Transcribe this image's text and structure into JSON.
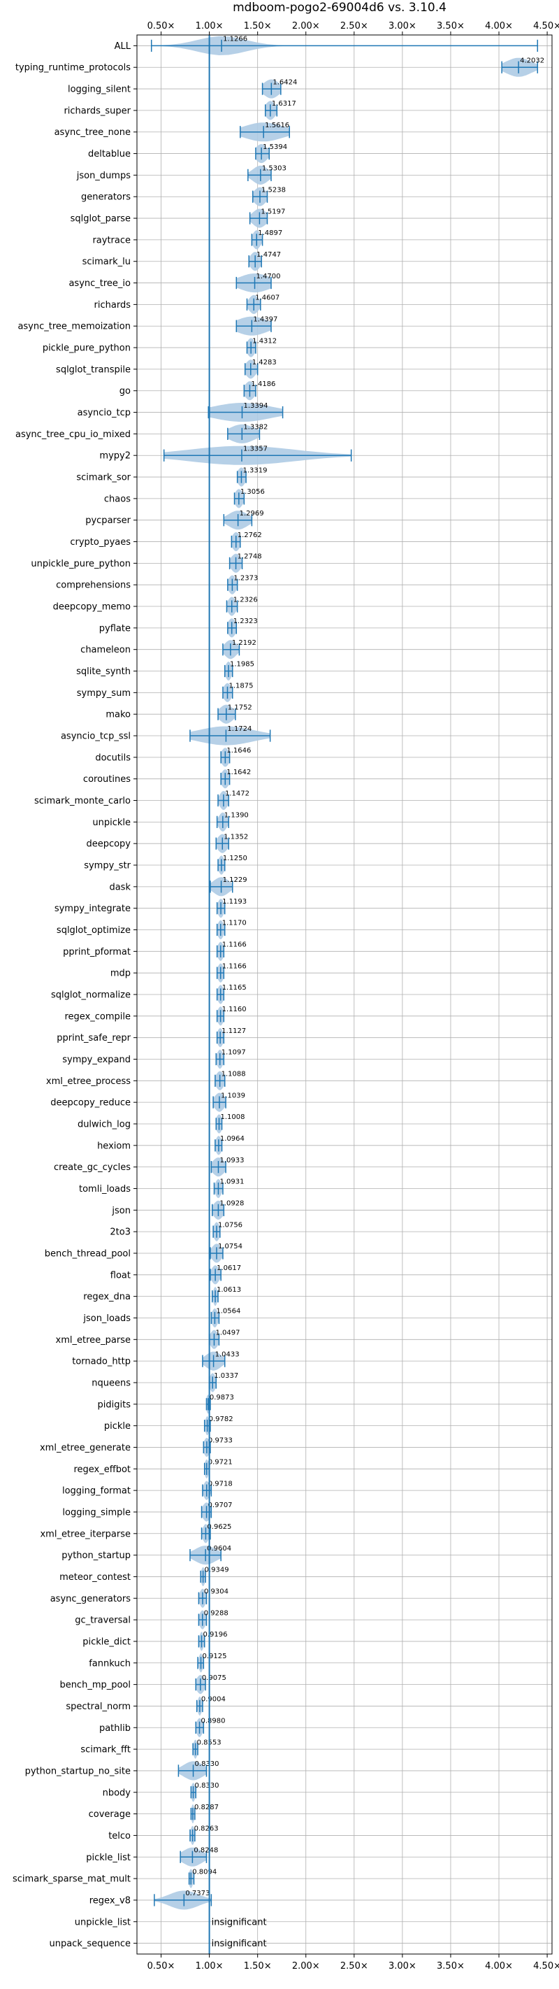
{
  "chart_data": {
    "type": "violin",
    "title": "mdboom-pogo2-69004d6 vs. 3.10.4",
    "xlabel": "",
    "ylabel": "",
    "xlim": [
      0.25,
      4.55
    ],
    "x_ticks": [
      0.5,
      1.0,
      1.5,
      2.0,
      2.5,
      3.0,
      3.5,
      4.0,
      4.5
    ],
    "x_tick_labels": [
      "0.50×",
      "1.00×",
      "1.50×",
      "2.00×",
      "2.50×",
      "3.00×",
      "3.50×",
      "4.00×",
      "4.50×"
    ],
    "reference_line": 1.0,
    "grid": true,
    "colors": {
      "violin": "#aecbe4",
      "line": "#1f77b4",
      "grid": "#b0b0b0"
    },
    "insignificant_label": "insignificant",
    "benchmarks": [
      {
        "name": "ALL",
        "value": 1.1266,
        "label": "1.1266",
        "min": 0.4,
        "max": 4.4,
        "spread": 0.25
      },
      {
        "name": "typing_runtime_protocols",
        "value": 4.2032,
        "label": "4.2032",
        "min": 4.03,
        "max": 4.4,
        "spread": 0.13
      },
      {
        "name": "logging_silent",
        "value": 1.6424,
        "label": "1.6424",
        "min": 1.55,
        "max": 1.74,
        "spread": 0.08
      },
      {
        "name": "richards_super",
        "value": 1.6317,
        "label": "1.6317",
        "min": 1.58,
        "max": 1.7,
        "spread": 0.05
      },
      {
        "name": "async_tree_none",
        "value": 1.5616,
        "label": "1.5616",
        "min": 1.32,
        "max": 1.83,
        "spread": 0.2
      },
      {
        "name": "deltablue",
        "value": 1.5394,
        "label": "1.5394",
        "min": 1.48,
        "max": 1.62,
        "spread": 0.06
      },
      {
        "name": "json_dumps",
        "value": 1.5303,
        "label": "1.5303",
        "min": 1.4,
        "max": 1.64,
        "spread": 0.08
      },
      {
        "name": "generators",
        "value": 1.5238,
        "label": "1.5238",
        "min": 1.45,
        "max": 1.6,
        "spread": 0.06
      },
      {
        "name": "sqlglot_parse",
        "value": 1.5197,
        "label": "1.5197",
        "min": 1.42,
        "max": 1.6,
        "spread": 0.07
      },
      {
        "name": "raytrace",
        "value": 1.4897,
        "label": "1.4897",
        "min": 1.44,
        "max": 1.55,
        "spread": 0.04
      },
      {
        "name": "scimark_lu",
        "value": 1.4747,
        "label": "1.4747",
        "min": 1.41,
        "max": 1.54,
        "spread": 0.05
      },
      {
        "name": "async_tree_io",
        "value": 1.47,
        "label": "1.4700",
        "min": 1.28,
        "max": 1.64,
        "spread": 0.16
      },
      {
        "name": "richards",
        "value": 1.4607,
        "label": "1.4607",
        "min": 1.39,
        "max": 1.53,
        "spread": 0.05
      },
      {
        "name": "async_tree_memoization",
        "value": 1.4397,
        "label": "1.4397",
        "min": 1.28,
        "max": 1.64,
        "spread": 0.16
      },
      {
        "name": "pickle_pure_python",
        "value": 1.4312,
        "label": "1.4312",
        "min": 1.39,
        "max": 1.48,
        "spread": 0.04
      },
      {
        "name": "sqlglot_transpile",
        "value": 1.4283,
        "label": "1.4283",
        "min": 1.37,
        "max": 1.5,
        "spread": 0.05
      },
      {
        "name": "go",
        "value": 1.4186,
        "label": "1.4186",
        "min": 1.36,
        "max": 1.48,
        "spread": 0.05
      },
      {
        "name": "asyncio_tcp",
        "value": 1.3394,
        "label": "1.3394",
        "min": 0.99,
        "max": 1.76,
        "spread": 0.3
      },
      {
        "name": "async_tree_cpu_io_mixed",
        "value": 1.3382,
        "label": "1.3382",
        "min": 1.19,
        "max": 1.52,
        "spread": 0.13
      },
      {
        "name": "mypy2",
        "value": 1.3357,
        "label": "1.3357",
        "min": 0.53,
        "max": 2.47,
        "spread": 0.55
      },
      {
        "name": "scimark_sor",
        "value": 1.3319,
        "label": "1.3319",
        "min": 1.29,
        "max": 1.38,
        "spread": 0.04
      },
      {
        "name": "chaos",
        "value": 1.3056,
        "label": "1.3056",
        "min": 1.26,
        "max": 1.36,
        "spread": 0.04
      },
      {
        "name": "pycparser",
        "value": 1.2969,
        "label": "1.2969",
        "min": 1.15,
        "max": 1.44,
        "spread": 0.1
      },
      {
        "name": "crypto_pyaes",
        "value": 1.2762,
        "label": "1.2762",
        "min": 1.23,
        "max": 1.32,
        "spread": 0.04
      },
      {
        "name": "unpickle_pure_python",
        "value": 1.2748,
        "label": "1.2748",
        "min": 1.21,
        "max": 1.34,
        "spread": 0.05
      },
      {
        "name": "comprehensions",
        "value": 1.2373,
        "label": "1.2373",
        "min": 1.19,
        "max": 1.29,
        "spread": 0.04
      },
      {
        "name": "deepcopy_memo",
        "value": 1.2326,
        "label": "1.2326",
        "min": 1.18,
        "max": 1.29,
        "spread": 0.04
      },
      {
        "name": "pyflate",
        "value": 1.2323,
        "label": "1.2323",
        "min": 1.19,
        "max": 1.28,
        "spread": 0.04
      },
      {
        "name": "chameleon",
        "value": 1.2192,
        "label": "1.2192",
        "min": 1.14,
        "max": 1.31,
        "spread": 0.06
      },
      {
        "name": "sqlite_synth",
        "value": 1.1985,
        "label": "1.1985",
        "min": 1.16,
        "max": 1.24,
        "spread": 0.03
      },
      {
        "name": "sympy_sum",
        "value": 1.1875,
        "label": "1.1875",
        "min": 1.14,
        "max": 1.24,
        "spread": 0.04
      },
      {
        "name": "mako",
        "value": 1.1752,
        "label": "1.1752",
        "min": 1.09,
        "max": 1.27,
        "spread": 0.07
      },
      {
        "name": "asyncio_tcp_ssl",
        "value": 1.1724,
        "label": "1.1724",
        "min": 0.8,
        "max": 1.63,
        "spread": 0.28
      },
      {
        "name": "docutils",
        "value": 1.1646,
        "label": "1.1646",
        "min": 1.12,
        "max": 1.21,
        "spread": 0.04
      },
      {
        "name": "coroutines",
        "value": 1.1642,
        "label": "1.1642",
        "min": 1.12,
        "max": 1.21,
        "spread": 0.04
      },
      {
        "name": "scimark_monte_carlo",
        "value": 1.1472,
        "label": "1.1472",
        "min": 1.09,
        "max": 1.2,
        "spread": 0.04
      },
      {
        "name": "unpickle",
        "value": 1.139,
        "label": "1.1390",
        "min": 1.08,
        "max": 1.2,
        "spread": 0.04
      },
      {
        "name": "deepcopy",
        "value": 1.1352,
        "label": "1.1352",
        "min": 1.07,
        "max": 1.2,
        "spread": 0.05
      },
      {
        "name": "sympy_str",
        "value": 1.125,
        "label": "1.1250",
        "min": 1.09,
        "max": 1.16,
        "spread": 0.03
      },
      {
        "name": "dask",
        "value": 1.1229,
        "label": "1.1229",
        "min": 1.01,
        "max": 1.24,
        "spread": 0.08
      },
      {
        "name": "sympy_integrate",
        "value": 1.1193,
        "label": "1.1193",
        "min": 1.08,
        "max": 1.16,
        "spread": 0.03
      },
      {
        "name": "sqlglot_optimize",
        "value": 1.117,
        "label": "1.1170",
        "min": 1.08,
        "max": 1.16,
        "spread": 0.03
      },
      {
        "name": "pprint_pformat",
        "value": 1.1166,
        "label": "1.1166",
        "min": 1.08,
        "max": 1.15,
        "spread": 0.03
      },
      {
        "name": "mdp",
        "value": 1.1166,
        "label": "1.1166",
        "min": 1.08,
        "max": 1.15,
        "spread": 0.03
      },
      {
        "name": "sqlglot_normalize",
        "value": 1.1165,
        "label": "1.1165",
        "min": 1.08,
        "max": 1.15,
        "spread": 0.03
      },
      {
        "name": "regex_compile",
        "value": 1.116,
        "label": "1.1160",
        "min": 1.08,
        "max": 1.15,
        "spread": 0.03
      },
      {
        "name": "pprint_safe_repr",
        "value": 1.1127,
        "label": "1.1127",
        "min": 1.08,
        "max": 1.15,
        "spread": 0.03
      },
      {
        "name": "sympy_expand",
        "value": 1.1097,
        "label": "1.1097",
        "min": 1.07,
        "max": 1.15,
        "spread": 0.03
      },
      {
        "name": "xml_etree_process",
        "value": 1.1088,
        "label": "1.1088",
        "min": 1.06,
        "max": 1.16,
        "spread": 0.04
      },
      {
        "name": "deepcopy_reduce",
        "value": 1.1039,
        "label": "1.1039",
        "min": 1.04,
        "max": 1.17,
        "spread": 0.05
      },
      {
        "name": "dulwich_log",
        "value": 1.1008,
        "label": "1.1008",
        "min": 1.07,
        "max": 1.13,
        "spread": 0.03
      },
      {
        "name": "hexiom",
        "value": 1.0964,
        "label": "1.0964",
        "min": 1.06,
        "max": 1.13,
        "spread": 0.03
      },
      {
        "name": "create_gc_cycles",
        "value": 1.0933,
        "label": "1.0933",
        "min": 1.02,
        "max": 1.17,
        "spread": 0.06
      },
      {
        "name": "tomli_loads",
        "value": 1.0931,
        "label": "1.0931",
        "min": 1.05,
        "max": 1.14,
        "spread": 0.03
      },
      {
        "name": "json",
        "value": 1.0928,
        "label": "1.0928",
        "min": 1.03,
        "max": 1.15,
        "spread": 0.05
      },
      {
        "name": "2to3",
        "value": 1.0756,
        "label": "1.0756",
        "min": 1.04,
        "max": 1.11,
        "spread": 0.03
      },
      {
        "name": "bench_thread_pool",
        "value": 1.0754,
        "label": "1.0754",
        "min": 1.01,
        "max": 1.14,
        "spread": 0.05
      },
      {
        "name": "float",
        "value": 1.0617,
        "label": "1.0617",
        "min": 1.01,
        "max": 1.12,
        "spread": 0.04
      },
      {
        "name": "regex_dna",
        "value": 1.0613,
        "label": "1.0613",
        "min": 1.03,
        "max": 1.09,
        "spread": 0.02
      },
      {
        "name": "json_loads",
        "value": 1.0564,
        "label": "1.0564",
        "min": 1.02,
        "max": 1.1,
        "spread": 0.03
      },
      {
        "name": "xml_etree_parse",
        "value": 1.0497,
        "label": "1.0497",
        "min": 1.0,
        "max": 1.1,
        "spread": 0.04
      },
      {
        "name": "tornado_http",
        "value": 1.0433,
        "label": "1.0433",
        "min": 0.93,
        "max": 1.16,
        "spread": 0.08
      },
      {
        "name": "nqueens",
        "value": 1.0337,
        "label": "1.0337",
        "min": 1.0,
        "max": 1.07,
        "spread": 0.03
      },
      {
        "name": "pidigits",
        "value": 0.9873,
        "label": "0.9873",
        "min": 0.97,
        "max": 1.01,
        "spread": 0.02
      },
      {
        "name": "pickle",
        "value": 0.9782,
        "label": "0.9782",
        "min": 0.95,
        "max": 1.01,
        "spread": 0.02
      },
      {
        "name": "xml_etree_generate",
        "value": 0.9733,
        "label": "0.9733",
        "min": 0.94,
        "max": 1.01,
        "spread": 0.03
      },
      {
        "name": "regex_effbot",
        "value": 0.9721,
        "label": "0.9721",
        "min": 0.95,
        "max": 1.0,
        "spread": 0.02
      },
      {
        "name": "logging_format",
        "value": 0.9718,
        "label": "0.9718",
        "min": 0.93,
        "max": 1.02,
        "spread": 0.03
      },
      {
        "name": "logging_simple",
        "value": 0.9707,
        "label": "0.9707",
        "min": 0.92,
        "max": 1.02,
        "spread": 0.04
      },
      {
        "name": "xml_etree_iterparse",
        "value": 0.9625,
        "label": "0.9625",
        "min": 0.92,
        "max": 1.01,
        "spread": 0.03
      },
      {
        "name": "python_startup",
        "value": 0.9604,
        "label": "0.9604",
        "min": 0.8,
        "max": 1.12,
        "spread": 0.11
      },
      {
        "name": "meteor_contest",
        "value": 0.9349,
        "label": "0.9349",
        "min": 0.91,
        "max": 0.96,
        "spread": 0.02
      },
      {
        "name": "async_generators",
        "value": 0.9304,
        "label": "0.9304",
        "min": 0.89,
        "max": 0.97,
        "spread": 0.03
      },
      {
        "name": "gc_traversal",
        "value": 0.9288,
        "label": "0.9288",
        "min": 0.89,
        "max": 0.97,
        "spread": 0.03
      },
      {
        "name": "pickle_dict",
        "value": 0.9196,
        "label": "0.9196",
        "min": 0.89,
        "max": 0.95,
        "spread": 0.02
      },
      {
        "name": "fannkuch",
        "value": 0.9125,
        "label": "0.9125",
        "min": 0.88,
        "max": 0.94,
        "spread": 0.02
      },
      {
        "name": "bench_mp_pool",
        "value": 0.9075,
        "label": "0.9075",
        "min": 0.86,
        "max": 0.96,
        "spread": 0.04
      },
      {
        "name": "spectral_norm",
        "value": 0.9004,
        "label": "0.9004",
        "min": 0.87,
        "max": 0.93,
        "spread": 0.02
      },
      {
        "name": "pathlib",
        "value": 0.898,
        "label": "0.8980",
        "min": 0.86,
        "max": 0.94,
        "spread": 0.03
      },
      {
        "name": "scimark_fft",
        "value": 0.8553,
        "label": "0.8553",
        "min": 0.83,
        "max": 0.88,
        "spread": 0.02
      },
      {
        "name": "python_startup_no_site",
        "value": 0.833,
        "label": "0.8330",
        "min": 0.68,
        "max": 0.97,
        "spread": 0.1
      },
      {
        "name": "nbody",
        "value": 0.833,
        "label": "0.8330",
        "min": 0.81,
        "max": 0.86,
        "spread": 0.02
      },
      {
        "name": "coverage",
        "value": 0.8287,
        "label": "0.8287",
        "min": 0.81,
        "max": 0.85,
        "spread": 0.015
      },
      {
        "name": "telco",
        "value": 0.8263,
        "label": "0.8263",
        "min": 0.8,
        "max": 0.85,
        "spread": 0.02
      },
      {
        "name": "pickle_list",
        "value": 0.8248,
        "label": "0.8248",
        "min": 0.7,
        "max": 0.97,
        "spread": 0.1
      },
      {
        "name": "scimark_sparse_mat_mult",
        "value": 0.8094,
        "label": "0.8094",
        "min": 0.79,
        "max": 0.84,
        "spread": 0.02
      },
      {
        "name": "regex_v8",
        "value": 0.7373,
        "label": "0.7373",
        "min": 0.43,
        "max": 1.02,
        "spread": 0.15
      },
      {
        "name": "unpickle_list",
        "insignificant": true
      },
      {
        "name": "unpack_sequence",
        "insignificant": true
      }
    ]
  }
}
